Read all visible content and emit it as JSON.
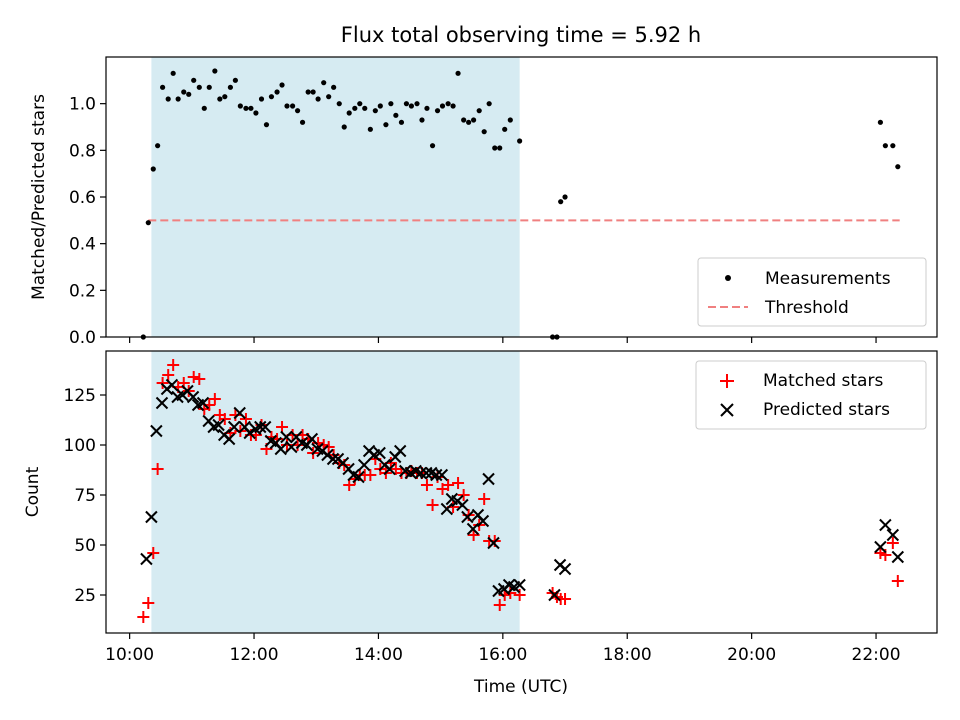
{
  "title": "Flux total observing time = 5.92 h",
  "xlabel": "Time (UTC)",
  "x_ticks": [
    {
      "value": 10,
      "label": "10:00"
    },
    {
      "value": 12,
      "label": "12:00"
    },
    {
      "value": 14,
      "label": "14:00"
    },
    {
      "value": 16,
      "label": "16:00"
    },
    {
      "value": 18,
      "label": "18:00"
    },
    {
      "value": 20,
      "label": "20:00"
    },
    {
      "value": 22,
      "label": "22:00"
    }
  ],
  "xlim": [
    9.62,
    22.98
  ],
  "colors": {
    "shade": "#add8e6",
    "measurement": "#000000",
    "threshold": "#f08080",
    "matched": "#ff0000",
    "predicted": "#000000"
  },
  "chart_data": [
    {
      "type": "scatter",
      "ylabel": "Matched/Predicted stars",
      "ylim": [
        0,
        1.2
      ],
      "y_ticks": [
        "0.0",
        "0.2",
        "0.4",
        "0.6",
        "0.8",
        "1.0"
      ],
      "y_tick_values": [
        0,
        0.2,
        0.4,
        0.6,
        0.8,
        1.0
      ],
      "observing_window": [
        10.35,
        16.27
      ],
      "legend_position": "lower right",
      "threshold": {
        "name": "Threshold",
        "y": 0.5,
        "x_range": [
          10.3,
          22.38
        ]
      },
      "series": [
        {
          "name": "Measurements",
          "x": [
            10.22,
            10.3,
            10.38,
            10.45,
            10.53,
            10.62,
            10.7,
            10.78,
            10.87,
            10.95,
            11.03,
            11.12,
            11.2,
            11.28,
            11.37,
            11.45,
            11.53,
            11.62,
            11.7,
            11.78,
            11.87,
            11.95,
            12.03,
            12.12,
            12.2,
            12.28,
            12.37,
            12.45,
            12.53,
            12.62,
            12.7,
            12.78,
            12.87,
            12.95,
            13.03,
            13.12,
            13.2,
            13.28,
            13.37,
            13.45,
            13.53,
            13.62,
            13.7,
            13.78,
            13.87,
            13.95,
            14.03,
            14.12,
            14.2,
            14.28,
            14.37,
            14.45,
            14.53,
            14.62,
            14.7,
            14.78,
            14.87,
            14.95,
            15.03,
            15.12,
            15.2,
            15.28,
            15.37,
            15.45,
            15.53,
            15.62,
            15.7,
            15.78,
            15.87,
            15.95,
            16.03,
            16.12,
            16.27,
            16.8,
            16.87,
            16.93,
            17.0,
            22.07,
            22.15,
            22.27,
            22.35
          ],
          "y": [
            0.0,
            0.49,
            0.72,
            0.82,
            1.07,
            1.02,
            1.13,
            1.02,
            1.05,
            1.04,
            1.1,
            1.07,
            0.98,
            1.07,
            1.14,
            1.02,
            1.03,
            1.07,
            1.1,
            0.99,
            0.98,
            0.98,
            0.96,
            1.02,
            0.91,
            1.03,
            1.05,
            1.08,
            0.99,
            0.99,
            0.97,
            0.92,
            1.05,
            1.05,
            1.02,
            1.09,
            1.03,
            1.07,
            1.0,
            0.9,
            0.96,
            0.98,
            1.0,
            0.98,
            0.89,
            0.97,
            0.99,
            0.91,
            1.0,
            0.95,
            0.92,
            1.0,
            0.99,
            1.0,
            0.93,
            0.98,
            0.82,
            0.97,
            0.99,
            1.0,
            0.99,
            1.13,
            0.93,
            0.92,
            0.93,
            0.97,
            0.88,
            1.0,
            0.81,
            0.81,
            0.89,
            0.93,
            0.84,
            0.0,
            0.0,
            0.58,
            0.6,
            0.92,
            0.82,
            0.82,
            0.73
          ]
        }
      ]
    },
    {
      "type": "scatter",
      "ylabel": "Count",
      "ylim": [
        6,
        147
      ],
      "y_ticks": [
        "25",
        "50",
        "75",
        "100",
        "125"
      ],
      "y_tick_values": [
        25,
        50,
        75,
        100,
        125
      ],
      "observing_window": [
        10.35,
        16.27
      ],
      "legend_position": "upper right",
      "series": [
        {
          "name": "Matched stars",
          "marker": "+",
          "x": [
            10.22,
            10.3,
            10.38,
            10.45,
            10.53,
            10.62,
            10.7,
            10.78,
            10.87,
            10.95,
            11.03,
            11.12,
            11.2,
            11.28,
            11.37,
            11.45,
            11.53,
            11.62,
            11.7,
            11.78,
            11.87,
            11.95,
            12.03,
            12.12,
            12.2,
            12.28,
            12.37,
            12.45,
            12.53,
            12.62,
            12.7,
            12.78,
            12.87,
            12.95,
            13.03,
            13.12,
            13.2,
            13.28,
            13.37,
            13.45,
            13.53,
            13.62,
            13.7,
            13.78,
            13.87,
            13.95,
            14.03,
            14.12,
            14.2,
            14.28,
            14.37,
            14.45,
            14.53,
            14.62,
            14.7,
            14.78,
            14.87,
            14.95,
            15.03,
            15.12,
            15.2,
            15.28,
            15.37,
            15.45,
            15.53,
            15.62,
            15.7,
            15.78,
            15.87,
            15.95,
            16.03,
            16.12,
            16.27,
            16.8,
            16.87,
            16.93,
            17.0,
            22.07,
            22.15,
            22.27,
            22.35
          ],
          "y": [
            14,
            21,
            46,
            88,
            131,
            135,
            140,
            129,
            131,
            127,
            134,
            133,
            118,
            120,
            123,
            115,
            113,
            106,
            115,
            107,
            113,
            105,
            105,
            110,
            98,
            104,
            103,
            109,
            100,
            105,
            100,
            105,
            103,
            96,
            101,
            100,
            99,
            95,
            91,
            90,
            80,
            83,
            85,
            85,
            85,
            93,
            88,
            86,
            91,
            88,
            86,
            86,
            87,
            86,
            86,
            80,
            70,
            84,
            78,
            80,
            69,
            81,
            75,
            65,
            55,
            60,
            73,
            52,
            52,
            20,
            25,
            26,
            25,
            26,
            24,
            23,
            23,
            46,
            45,
            51,
            32
          ]
        },
        {
          "name": "Predicted stars",
          "marker": "x",
          "x": [
            10.27,
            10.35,
            10.43,
            10.52,
            10.6,
            10.68,
            10.77,
            10.85,
            10.93,
            11.02,
            11.1,
            11.18,
            11.27,
            11.35,
            11.43,
            11.52,
            11.6,
            11.68,
            11.77,
            11.85,
            11.93,
            12.02,
            12.1,
            12.18,
            12.27,
            12.35,
            12.43,
            12.52,
            12.6,
            12.68,
            12.77,
            12.85,
            12.93,
            13.02,
            13.1,
            13.18,
            13.27,
            13.35,
            13.43,
            13.52,
            13.6,
            13.68,
            13.77,
            13.85,
            13.93,
            14.02,
            14.1,
            14.18,
            14.27,
            14.35,
            14.43,
            14.52,
            14.6,
            14.68,
            14.77,
            14.85,
            14.93,
            15.02,
            15.1,
            15.18,
            15.27,
            15.35,
            15.43,
            15.52,
            15.6,
            15.68,
            15.77,
            15.85,
            15.93,
            16.02,
            16.1,
            16.18,
            16.27,
            16.83,
            16.92,
            17.0,
            22.07,
            22.15,
            22.27,
            22.35
          ],
          "y": [
            43,
            64,
            107,
            121,
            128,
            130,
            124,
            125,
            127,
            124,
            120,
            121,
            112,
            109,
            110,
            105,
            103,
            109,
            116,
            109,
            106,
            108,
            109,
            109,
            102,
            101,
            98,
            104,
            99,
            104,
            101,
            100,
            103,
            98,
            97,
            95,
            93,
            93,
            91,
            88,
            85,
            84,
            90,
            97,
            95,
            96,
            90,
            88,
            94,
            97,
            87,
            86,
            87,
            86,
            86,
            86,
            85,
            85,
            68,
            73,
            72,
            70,
            64,
            58,
            65,
            62,
            83,
            51,
            27,
            28,
            30,
            29,
            30,
            25,
            40,
            38,
            49,
            60,
            55,
            44
          ]
        }
      ]
    }
  ]
}
